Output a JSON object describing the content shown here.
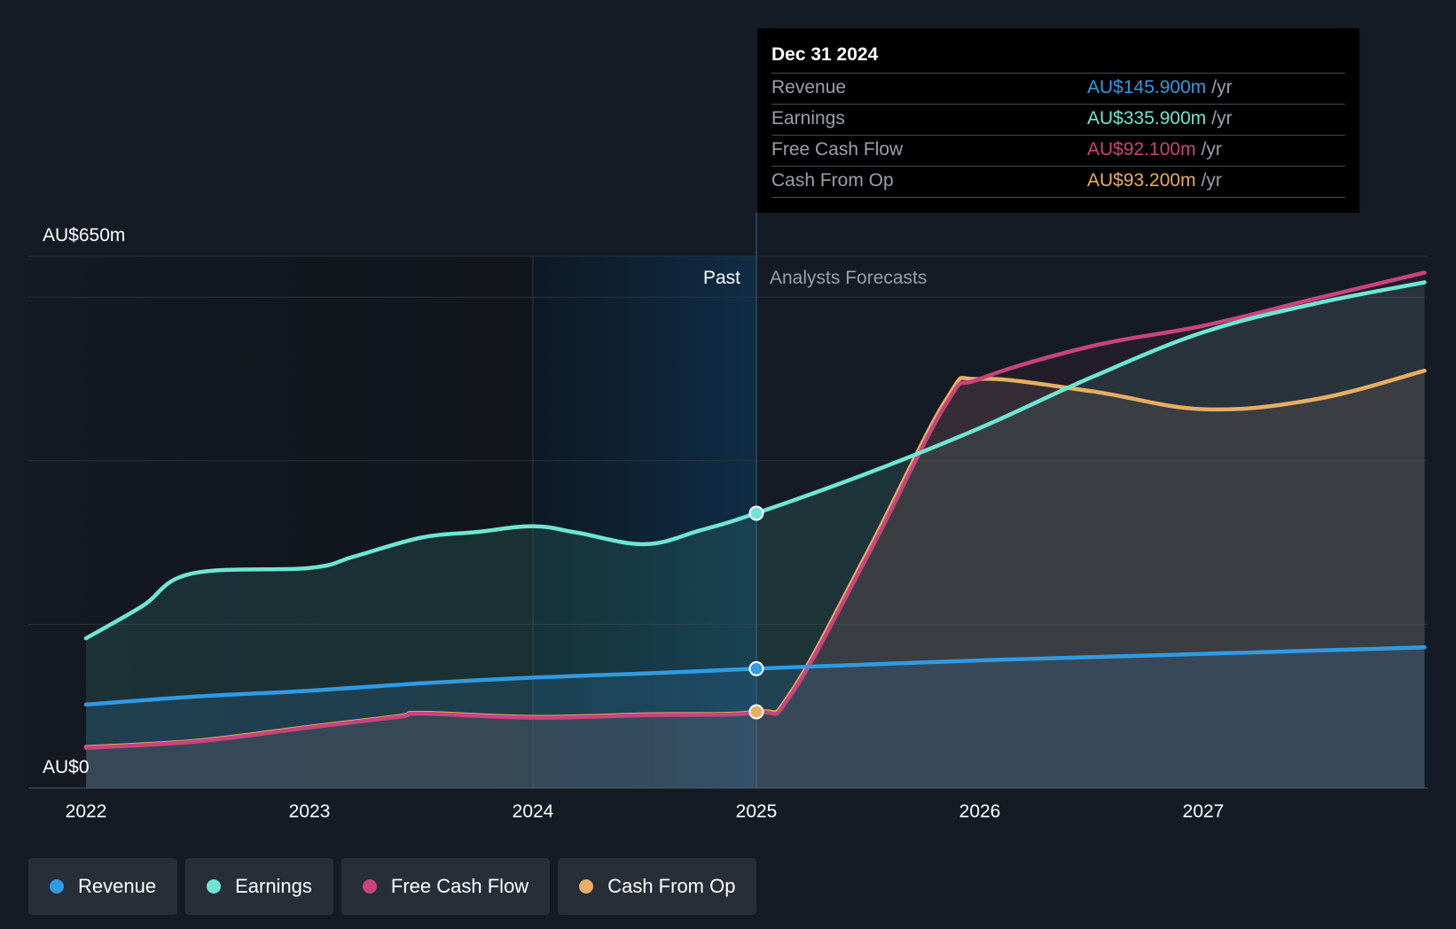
{
  "chart_data": {
    "type": "area",
    "y_axis": {
      "min": 0,
      "max": 650,
      "top_label": "AU$650m",
      "bottom_label": "AU$0",
      "gridlines": [
        0,
        200,
        400,
        600,
        650
      ]
    },
    "x_axis": {
      "min": 2021.75,
      "max": 2027.99,
      "ticks": [
        2022,
        2023,
        2024,
        2025,
        2026,
        2027
      ],
      "tick_labels": [
        "2022",
        "2023",
        "2024",
        "2025",
        "2026",
        "2027"
      ]
    },
    "divider_x": 2025.0,
    "past_label": "Past",
    "forecast_label": "Analysts Forecasts",
    "highlight_start": 2024.0,
    "series": [
      {
        "name": "Cash From Op",
        "color": "#e8ae63",
        "points": [
          [
            2022,
            50
          ],
          [
            2022.5,
            58
          ],
          [
            2023,
            75
          ],
          [
            2023.4,
            88
          ],
          [
            2023.5,
            92
          ],
          [
            2024,
            87
          ],
          [
            2024.5,
            90
          ],
          [
            2025,
            93.2
          ],
          [
            2025.15,
            115
          ],
          [
            2025.5,
            290
          ],
          [
            2025.85,
            475
          ],
          [
            2026,
            500
          ],
          [
            2026.5,
            485
          ],
          [
            2027,
            463
          ],
          [
            2027.5,
            475
          ],
          [
            2027.99,
            510
          ]
        ]
      },
      {
        "name": "Free Cash Flow",
        "color": "#c9447c",
        "points": [
          [
            2022,
            49
          ],
          [
            2022.5,
            57
          ],
          [
            2023,
            74
          ],
          [
            2023.4,
            87
          ],
          [
            2023.5,
            91
          ],
          [
            2024,
            86
          ],
          [
            2024.5,
            89
          ],
          [
            2025,
            92.1
          ],
          [
            2025.15,
            112
          ],
          [
            2025.5,
            285
          ],
          [
            2025.85,
            470
          ],
          [
            2026,
            500
          ],
          [
            2026.5,
            540
          ],
          [
            2027,
            565
          ],
          [
            2027.5,
            598
          ],
          [
            2027.99,
            630
          ]
        ]
      },
      {
        "name": "Revenue",
        "color": "#2f9be3",
        "points": [
          [
            2022,
            102
          ],
          [
            2022.5,
            112
          ],
          [
            2023,
            119
          ],
          [
            2023.5,
            128
          ],
          [
            2024,
            135
          ],
          [
            2024.5,
            140
          ],
          [
            2025,
            145.9
          ],
          [
            2025.5,
            151
          ],
          [
            2026,
            156
          ],
          [
            2026.5,
            160
          ],
          [
            2027,
            164
          ],
          [
            2027.5,
            168
          ],
          [
            2027.99,
            172
          ]
        ]
      },
      {
        "name": "Earnings",
        "color": "#6ee6d3",
        "points": [
          [
            2022,
            183
          ],
          [
            2022.25,
            222
          ],
          [
            2022.47,
            262
          ],
          [
            2023,
            269
          ],
          [
            2023.2,
            283
          ],
          [
            2023.5,
            306
          ],
          [
            2023.75,
            313
          ],
          [
            2024,
            320
          ],
          [
            2024.2,
            312
          ],
          [
            2024.5,
            298
          ],
          [
            2024.75,
            315
          ],
          [
            2025,
            335.9
          ],
          [
            2025.5,
            385
          ],
          [
            2026,
            440
          ],
          [
            2026.5,
            502
          ],
          [
            2027,
            557
          ],
          [
            2027.5,
            592
          ],
          [
            2027.99,
            618
          ]
        ]
      }
    ],
    "markers": [
      {
        "series": "Earnings",
        "x": 2025,
        "y": 335.9
      },
      {
        "series": "Revenue",
        "x": 2025,
        "y": 145.9
      },
      {
        "series": "Cash From Op",
        "x": 2025,
        "y": 93.2
      }
    ]
  },
  "tooltip": {
    "date": "Dec 31 2024",
    "unit": "/yr",
    "rows": [
      {
        "label": "Revenue",
        "value": "AU$145.900m",
        "color": "#2f9be3"
      },
      {
        "label": "Earnings",
        "value": "AU$335.900m",
        "color": "#6ee6d3"
      },
      {
        "label": "Free Cash Flow",
        "value": "AU$92.100m",
        "color": "#c9447c"
      },
      {
        "label": "Cash From Op",
        "value": "AU$93.200m",
        "color": "#e8ae63"
      }
    ]
  },
  "legend": [
    {
      "label": "Revenue",
      "color": "#2f9be3"
    },
    {
      "label": "Earnings",
      "color": "#6ee6d3"
    },
    {
      "label": "Free Cash Flow",
      "color": "#c9447c"
    },
    {
      "label": "Cash From Op",
      "color": "#e8ae63"
    }
  ]
}
